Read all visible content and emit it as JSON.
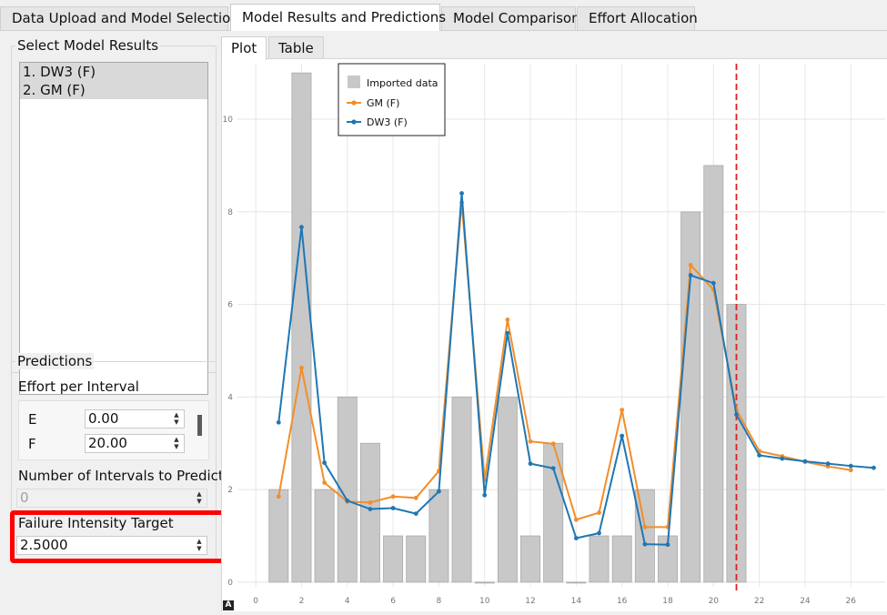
{
  "tabs": [
    {
      "label": "Data Upload and Model Selection",
      "active": false
    },
    {
      "label": "Model Results and Predictions",
      "active": true
    },
    {
      "label": "Model Comparison",
      "active": false
    },
    {
      "label": "Effort Allocation",
      "active": false
    }
  ],
  "left": {
    "select_title": "Select Model Results",
    "models": [
      "1. DW3 (F)",
      "2. GM (F)"
    ],
    "predictions_title": "Predictions",
    "effort_label": "Effort per Interval",
    "effort_rows": [
      {
        "name": "E",
        "value": "0.00"
      },
      {
        "name": "F",
        "value": "20.00"
      }
    ],
    "intervals_label": "Number of Intervals to Predict",
    "intervals_value": "0",
    "target_label": "Failure Intensity Target",
    "target_value": "2.5000"
  },
  "subtabs": [
    "Plot",
    "Table"
  ],
  "chart_data": {
    "type": "bar",
    "x": [
      1,
      2,
      3,
      4,
      5,
      6,
      7,
      8,
      9,
      10,
      11,
      12,
      13,
      14,
      15,
      16,
      17,
      18,
      19,
      20,
      21
    ],
    "values": [
      2,
      11,
      2,
      4,
      3,
      1,
      1,
      2,
      4,
      0,
      4,
      1,
      3,
      0,
      1,
      1,
      2,
      1,
      8,
      9,
      6
    ],
    "xlim": [
      -0.8,
      27.5
    ],
    "ylim": [
      -0.1,
      11.2
    ],
    "xticks": [
      "0",
      "2",
      "4",
      "6",
      "8",
      "10",
      "12",
      "14",
      "16",
      "18",
      "20",
      "22",
      "24",
      "26"
    ],
    "yticks": [
      "0",
      "2",
      "4",
      "6",
      "8",
      "10"
    ],
    "grid": true,
    "legend_position": "top-left",
    "series": [
      {
        "name": "Imported data",
        "color": "#c8c8c8"
      },
      {
        "name": "GM (F)",
        "color": "#f28e2b",
        "x": [
          1,
          2,
          3,
          4,
          5,
          6,
          7,
          8,
          9,
          10,
          11,
          12,
          13,
          14,
          15,
          16,
          17,
          18,
          19,
          20,
          21,
          22,
          23,
          24,
          25,
          26
        ],
        "values": [
          1.85,
          4.63,
          2.15,
          1.74,
          1.72,
          1.85,
          1.82,
          2.4,
          8.2,
          2.2,
          5.67,
          3.04,
          2.99,
          1.35,
          1.5,
          3.72,
          1.19,
          1.19,
          6.85,
          6.32,
          3.72,
          2.83,
          2.72,
          2.6,
          2.5,
          2.42
        ]
      },
      {
        "name": "DW3 (F)",
        "color": "#1f77b4",
        "x": [
          1,
          2,
          3,
          4,
          5,
          6,
          7,
          8,
          9,
          10,
          11,
          12,
          13,
          14,
          15,
          16,
          17,
          18,
          19,
          20,
          21,
          22,
          23,
          24,
          25,
          26,
          27
        ],
        "values": [
          3.45,
          7.67,
          2.58,
          1.76,
          1.58,
          1.6,
          1.48,
          1.96,
          8.4,
          1.88,
          5.38,
          2.56,
          2.46,
          0.95,
          1.06,
          3.16,
          0.82,
          0.81,
          6.63,
          6.46,
          3.62,
          2.74,
          2.67,
          2.61,
          2.56,
          2.51,
          2.47
        ]
      }
    ],
    "vline": {
      "x": 21,
      "color": "#e02020"
    }
  }
}
